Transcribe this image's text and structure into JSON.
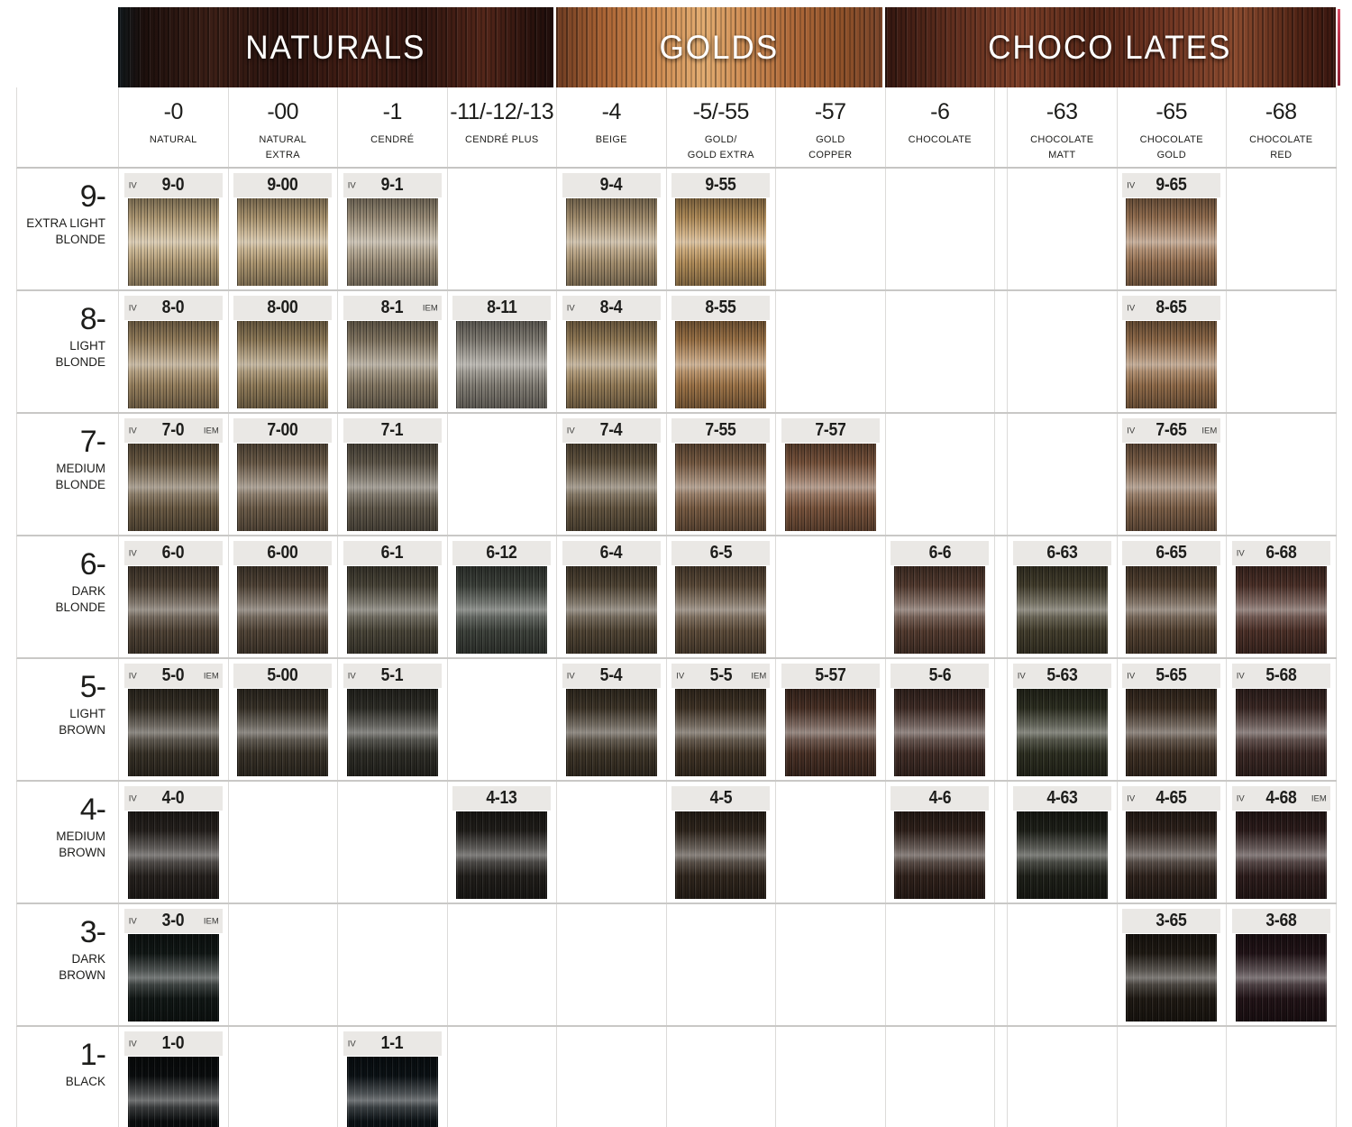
{
  "groups": [
    {
      "label": "NATURALS",
      "hair_base": "#2f1711"
    },
    {
      "label": "GOLDS",
      "hair_base": "#cf8b50"
    },
    {
      "label": "CHOCO LATES",
      "hair_base": "#5f2e1e"
    }
  ],
  "edge_strip_color": "#b82e47",
  "label_bar_color": "#eae8e5",
  "grid_line_color": "#c9c8c6",
  "columns": [
    {
      "code": "-0",
      "name": "NATURAL"
    },
    {
      "code": "-00",
      "name": "NATURAL\nEXTRA"
    },
    {
      "code": "-1",
      "name": "CENDRÉ"
    },
    {
      "code": "-11/-12/-13",
      "name": "CENDRÉ PLUS"
    },
    {
      "code": "-4",
      "name": "BEIGE"
    },
    {
      "code": "-5/-55",
      "name": "GOLD/\nGOLD EXTRA"
    },
    {
      "code": "-57",
      "name": "GOLD\nCOPPER"
    },
    {
      "code": "-6",
      "name": "CHOCOLATE"
    },
    {
      "code": "-63",
      "name": "CHOCOLATE\nMATT"
    },
    {
      "code": "-65",
      "name": "CHOCOLATE\nGOLD"
    },
    {
      "code": "-68",
      "name": "CHOCOLATE\nRED"
    }
  ],
  "rows": [
    {
      "level": "9-",
      "name": "EXTRA LIGHT\nBLONDE",
      "cells": [
        {
          "col": 0,
          "code": "9-0",
          "badges": [
            "IV"
          ],
          "color": "#c3ab81"
        },
        {
          "col": 1,
          "code": "9-00",
          "badges": [],
          "color": "#bfa67c"
        },
        {
          "col": 2,
          "code": "9-1",
          "badges": [
            "IV"
          ],
          "color": "#ac9d85"
        },
        {
          "col": 4,
          "code": "9-4",
          "badges": [],
          "color": "#b49c78"
        },
        {
          "col": 5,
          "code": "9-55",
          "badges": [],
          "color": "#c49b62"
        },
        {
          "col": 9,
          "code": "9-65",
          "badges": [
            "IV"
          ],
          "color": "#a37a58"
        }
      ]
    },
    {
      "level": "8-",
      "name": "LIGHT\nBLONDE",
      "cells": [
        {
          "col": 0,
          "code": "8-0",
          "badges": [
            "IV"
          ],
          "color": "#a58c66"
        },
        {
          "col": 1,
          "code": "8-00",
          "badges": [],
          "color": "#9f8862"
        },
        {
          "col": 2,
          "code": "8-1",
          "badges": [
            "IEM"
          ],
          "color": "#91836c"
        },
        {
          "col": 3,
          "code": "8-11",
          "badges": [],
          "color": "#8f8a80"
        },
        {
          "col": 4,
          "code": "8-4",
          "badges": [
            "IV"
          ],
          "color": "#a2875f"
        },
        {
          "col": 5,
          "code": "8-55",
          "badges": [],
          "color": "#ad7f4e"
        },
        {
          "col": 9,
          "code": "8-65",
          "badges": [
            "IV"
          ],
          "color": "#9e7550"
        }
      ]
    },
    {
      "level": "7-",
      "name": "MEDIUM\nBLONDE",
      "cells": [
        {
          "col": 0,
          "code": "7-0",
          "badges": [
            "IV",
            "IEM"
          ],
          "color": "#75634a"
        },
        {
          "col": 1,
          "code": "7-00",
          "badges": [],
          "color": "#776550"
        },
        {
          "col": 2,
          "code": "7-1",
          "badges": [],
          "color": "#6a6152"
        },
        {
          "col": 4,
          "code": "7-4",
          "badges": [
            "IV"
          ],
          "color": "#6d5d46"
        },
        {
          "col": 5,
          "code": "7-55",
          "badges": [],
          "color": "#85654a"
        },
        {
          "col": 6,
          "code": "7-57",
          "badges": [],
          "color": "#855c42"
        },
        {
          "col": 9,
          "code": "7-65",
          "badges": [
            "IV",
            "IEM"
          ],
          "color": "#88684e"
        }
      ]
    },
    {
      "level": "6-",
      "name": "DARK\nBLONDE",
      "cells": [
        {
          "col": 0,
          "code": "6-0",
          "badges": [
            "IV"
          ],
          "color": "#57493a"
        },
        {
          "col": 1,
          "code": "6-00",
          "badges": [],
          "color": "#594b3c"
        },
        {
          "col": 2,
          "code": "6-1",
          "badges": [],
          "color": "#514c3e"
        },
        {
          "col": 3,
          "code": "6-12",
          "badges": [],
          "color": "#434841"
        },
        {
          "col": 4,
          "code": "6-4",
          "badges": [],
          "color": "#584b39"
        },
        {
          "col": 5,
          "code": "6-5",
          "badges": [],
          "color": "#66533f"
        },
        {
          "col": 7,
          "code": "6-6",
          "badges": [],
          "color": "#5c4134"
        },
        {
          "col": 8,
          "code": "6-63",
          "badges": [],
          "color": "#4a4431"
        },
        {
          "col": 9,
          "code": "6-65",
          "badges": [],
          "color": "#5c4836"
        },
        {
          "col": 10,
          "code": "6-68",
          "badges": [
            "IV"
          ],
          "color": "#54352c"
        }
      ]
    },
    {
      "level": "5-",
      "name": "LIGHT\nBROWN",
      "cells": [
        {
          "col": 0,
          "code": "5-0",
          "badges": [
            "IV",
            "IEM"
          ],
          "color": "#3c352a"
        },
        {
          "col": 1,
          "code": "5-00",
          "badges": [],
          "color": "#3e372c"
        },
        {
          "col": 2,
          "code": "5-1",
          "badges": [
            "IV"
          ],
          "color": "#32312a"
        },
        {
          "col": 4,
          "code": "5-4",
          "badges": [
            "IV"
          ],
          "color": "#443a2c"
        },
        {
          "col": 5,
          "code": "5-5",
          "badges": [
            "IV",
            "IEM"
          ],
          "color": "#47392a"
        },
        {
          "col": 6,
          "code": "5-57",
          "badges": [],
          "color": "#503529"
        },
        {
          "col": 7,
          "code": "5-6",
          "badges": [],
          "color": "#47312a"
        },
        {
          "col": 8,
          "code": "5-63",
          "badges": [
            "IV"
          ],
          "color": "#313324"
        },
        {
          "col": 9,
          "code": "5-65",
          "badges": [
            "IV"
          ],
          "color": "#443427"
        },
        {
          "col": 10,
          "code": "5-68",
          "badges": [
            "IV"
          ],
          "color": "#412c28"
        }
      ]
    },
    {
      "level": "4-",
      "name": "MEDIUM\nBROWN",
      "cells": [
        {
          "col": 0,
          "code": "4-0",
          "badges": [
            "IV"
          ],
          "color": "#292420"
        },
        {
          "col": 3,
          "code": "4-13",
          "badges": [],
          "color": "#24211d"
        },
        {
          "col": 5,
          "code": "4-5",
          "badges": [],
          "color": "#352a20"
        },
        {
          "col": 7,
          "code": "4-6",
          "badges": [],
          "color": "#35251e"
        },
        {
          "col": 8,
          "code": "4-63",
          "badges": [],
          "color": "#21231b"
        },
        {
          "col": 9,
          "code": "4-65",
          "badges": [
            "IV"
          ],
          "color": "#32251e"
        },
        {
          "col": 10,
          "code": "4-68",
          "badges": [
            "IV",
            "IEM"
          ],
          "color": "#311f1e"
        }
      ]
    },
    {
      "level": "3-",
      "name": "DARK\nBROWN",
      "cells": [
        {
          "col": 0,
          "code": "3-0",
          "badges": [
            "IV",
            "IEM"
          ],
          "color": "#121917"
        },
        {
          "col": 9,
          "code": "3-65",
          "badges": [],
          "color": "#221c15"
        },
        {
          "col": 10,
          "code": "3-68",
          "badges": [],
          "color": "#251519"
        }
      ]
    },
    {
      "level": "1-",
      "name": "BLACK",
      "cells": [
        {
          "col": 0,
          "code": "1-0",
          "badges": [
            "IV"
          ],
          "color": "#0b0e0f"
        },
        {
          "col": 2,
          "code": "1-1",
          "badges": [
            "IV"
          ],
          "color": "#0c1317"
        }
      ]
    }
  ],
  "chart_data": {
    "type": "table",
    "column_groups": [
      {
        "label": "NATURALS",
        "columns": [
          "-0",
          "-00",
          "-1",
          "-11/-12/-13"
        ]
      },
      {
        "label": "GOLDS",
        "columns": [
          "-4",
          "-5/-55",
          "-57"
        ]
      },
      {
        "label": "CHOCO LATES",
        "columns": [
          "-6",
          "-63",
          "-65",
          "-68"
        ]
      }
    ],
    "column_names": [
      "NATURAL",
      "NATURAL EXTRA",
      "CENDRÉ",
      "CENDRÉ PLUS",
      "BEIGE",
      "GOLD/ GOLD EXTRA",
      "GOLD COPPER",
      "CHOCOLATE",
      "CHOCOLATE MATT",
      "CHOCOLATE GOLD",
      "CHOCOLATE RED"
    ],
    "row_levels": [
      {
        "level": "9-",
        "name": "EXTRA LIGHT BLONDE"
      },
      {
        "level": "8-",
        "name": "LIGHT BLONDE"
      },
      {
        "level": "7-",
        "name": "MEDIUM BLONDE"
      },
      {
        "level": "6-",
        "name": "DARK BLONDE"
      },
      {
        "level": "5-",
        "name": "LIGHT BROWN"
      },
      {
        "level": "4-",
        "name": "MEDIUM BROWN"
      },
      {
        "level": "3-",
        "name": "DARK BROWN"
      },
      {
        "level": "1-",
        "name": "BLACK"
      }
    ],
    "matrix": [
      [
        "9-0",
        "9-00",
        "9-1",
        null,
        "9-4",
        "9-55",
        null,
        null,
        null,
        "9-65",
        null
      ],
      [
        "8-0",
        "8-00",
        "8-1",
        "8-11",
        "8-4",
        "8-55",
        null,
        null,
        null,
        "8-65",
        null
      ],
      [
        "7-0",
        "7-00",
        "7-1",
        null,
        "7-4",
        "7-55",
        "7-57",
        null,
        null,
        "7-65",
        null
      ],
      [
        "6-0",
        "6-00",
        "6-1",
        "6-12",
        "6-4",
        "6-5",
        null,
        "6-6",
        "6-63",
        "6-65",
        "6-68"
      ],
      [
        "5-0",
        "5-00",
        "5-1",
        null,
        "5-4",
        "5-5",
        "5-57",
        "5-6",
        "5-63",
        "5-65",
        "5-68"
      ],
      [
        "4-0",
        null,
        null,
        "4-13",
        null,
        "4-5",
        null,
        "4-6",
        "4-63",
        "4-65",
        "4-68"
      ],
      [
        "3-0",
        null,
        null,
        null,
        null,
        null,
        null,
        null,
        null,
        "3-65",
        "3-68"
      ],
      [
        "1-0",
        null,
        "1-1",
        null,
        null,
        null,
        null,
        null,
        null,
        null,
        null
      ]
    ]
  }
}
